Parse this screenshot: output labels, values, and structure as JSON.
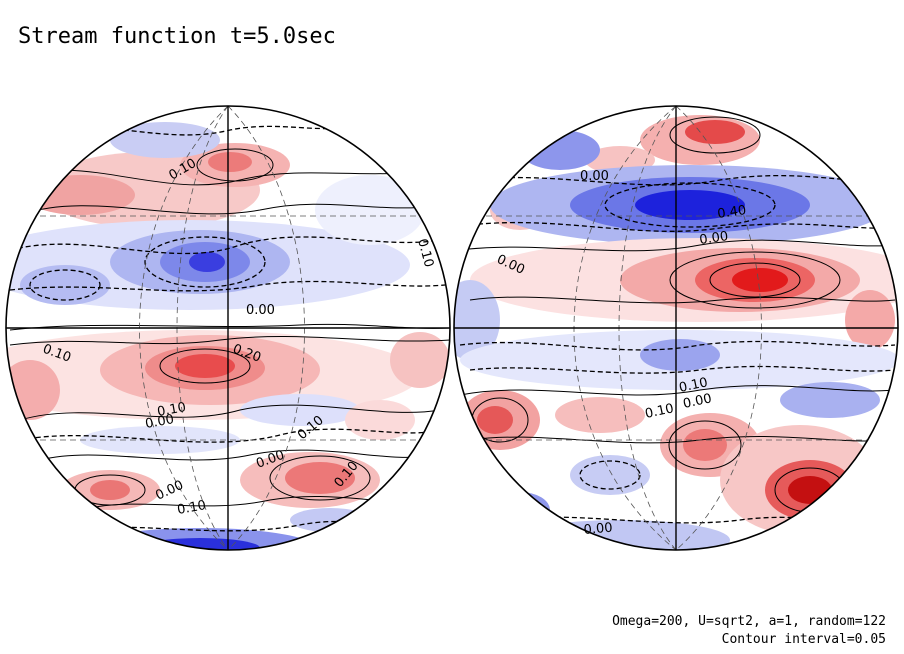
{
  "title": "Stream function t=5.0sec",
  "caption": {
    "params": "Omega=200, U=sqrt2, a=1, random=122",
    "contour_interval": "Contour interval=0.05"
  },
  "colors": {
    "positive_strong": "#e8262a",
    "positive_weak": "#fbe3e2",
    "negative_strong": "#1f1fe0",
    "negative_weak": "#e4e6fb",
    "line": "#000000"
  },
  "left_globe": {
    "contour_labels": [
      "0.10",
      "0.10",
      "0.00",
      "0.10",
      "0.20",
      "0.10",
      "0.00",
      "0.00",
      "0.10",
      "0.10",
      "0.00",
      "0.10",
      "0.00"
    ]
  },
  "right_globe": {
    "contour_labels": [
      "0.00",
      "0.40",
      "0.00",
      "0.00",
      "0.10",
      "0.10",
      "0.00",
      "0.00"
    ]
  }
}
